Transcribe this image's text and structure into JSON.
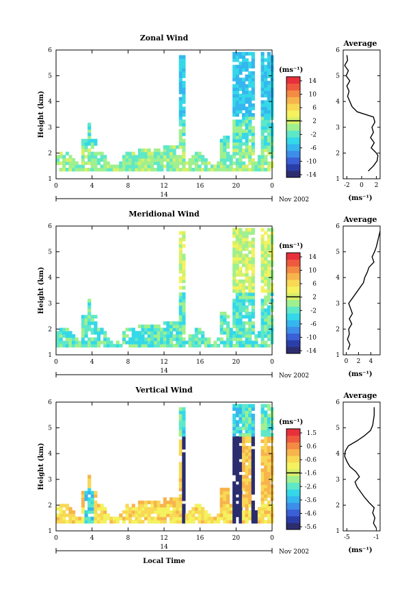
{
  "figure": {
    "xlabel": "Local Time",
    "time_ticks": [
      "0",
      "4",
      "8",
      "12",
      "16",
      "20",
      "0"
    ],
    "day_label": "14",
    "month_label": "Nov 2002",
    "unit_label": "(ms⁻¹)",
    "height_ticks": [
      "1",
      "2",
      "3",
      "4",
      "5",
      "6"
    ],
    "colors": [
      "#2b2d6e",
      "#2b3ea8",
      "#3a5fd6",
      "#3d8ee8",
      "#35b6ee",
      "#34d8e8",
      "#5fe8c8",
      "#9ff08e",
      "#d6f06a",
      "#f4f25e",
      "#f8d855",
      "#f7b44c",
      "#f48a44",
      "#ef5a3e",
      "#e8303a"
    ]
  },
  "panels": [
    {
      "id": "zonal",
      "title": "Zonal Wind",
      "ylabel": "Height (km)",
      "colorbar_ticks": [
        "14",
        "10",
        "6",
        "2",
        "-2",
        "-6",
        "-10",
        "-14"
      ],
      "avg_title": "Average",
      "avg_xticks": [
        "-2",
        "0",
        "2"
      ],
      "avg_unit": "(ms⁻¹)"
    },
    {
      "id": "meridional",
      "title": "Meridional Wind",
      "ylabel": "Height (km)",
      "colorbar_ticks": [
        "14",
        "10",
        "6",
        "2",
        "-2",
        "-6",
        "-10",
        "-14"
      ],
      "avg_title": "Average",
      "avg_xticks": [
        "0",
        "2",
        "4"
      ],
      "avg_unit": "(ms⁻¹)"
    },
    {
      "id": "vertical",
      "title": "Vertical Wind",
      "ylabel": "Height (km)",
      "colorbar_ticks": [
        "1.5",
        "0.6",
        "-0.6",
        "-1.6",
        "-2.6",
        "-3.6",
        "-4.6",
        "-5.6"
      ],
      "avg_title": "Average",
      "avg_xticks": [
        "-5",
        "-1"
      ],
      "avg_unit": "(ms⁻¹)"
    }
  ],
  "chart_data": [
    {
      "type": "heatmap",
      "title": "Zonal Wind",
      "xlabel": "",
      "ylabel": "Height (km)",
      "x_range": [
        0,
        24
      ],
      "ylim": [
        1,
        6
      ],
      "colorbar": {
        "label": "(ms⁻¹)",
        "range": [
          -15,
          15
        ]
      },
      "profile": {
        "title": "Average",
        "xlim": [
          -2.5,
          2.5
        ],
        "heights": [
          1.3,
          1.5,
          1.7,
          1.9,
          2.0,
          2.2,
          2.4,
          2.6,
          2.8,
          3.0,
          3.2,
          3.4,
          3.6,
          3.8,
          4.0,
          4.2,
          4.4,
          4.6,
          4.8,
          5.0,
          5.2,
          5.4,
          5.6,
          5.8
        ],
        "values": [
          0.9,
          1.6,
          2.1,
          2.2,
          2.0,
          1.3,
          1.7,
          1.2,
          1.6,
          1.4,
          1.8,
          1.6,
          -0.6,
          -1.3,
          -1.6,
          -1.9,
          -1.7,
          -2.0,
          -1.6,
          -2.1,
          -1.8,
          -2.3,
          -1.9,
          -2.0
        ]
      }
    },
    {
      "type": "heatmap",
      "title": "Meridional Wind",
      "xlabel": "",
      "ylabel": "Height (km)",
      "x_range": [
        0,
        24
      ],
      "ylim": [
        1,
        6
      ],
      "colorbar": {
        "label": "(ms⁻¹)",
        "range": [
          -15,
          15
        ]
      },
      "profile": {
        "title": "Average",
        "xlim": [
          -0.5,
          5.5
        ],
        "heights": [
          1.2,
          1.4,
          1.6,
          1.8,
          2.0,
          2.2,
          2.4,
          2.6,
          2.8,
          3.0,
          3.2,
          3.4,
          3.6,
          3.8,
          4.0,
          4.2,
          4.4,
          4.6,
          4.8,
          5.0,
          5.2,
          5.4,
          5.6,
          5.8
        ],
        "values": [
          0.3,
          0.6,
          0.2,
          0.5,
          0.4,
          0.9,
          0.5,
          1.0,
          0.7,
          0.4,
          1.0,
          1.6,
          2.2,
          2.8,
          3.0,
          3.4,
          3.7,
          4.5,
          4.2,
          4.6,
          4.9,
          5.1,
          5.3,
          5.5
        ]
      }
    },
    {
      "type": "heatmap",
      "title": "Vertical Wind",
      "xlabel": "Local Time",
      "ylabel": "Height (km)",
      "x_range": [
        0,
        24
      ],
      "ylim": [
        1,
        6
      ],
      "colorbar": {
        "label": "(ms⁻¹)",
        "range": [
          -6.0,
          2.0
        ]
      },
      "profile": {
        "title": "Average",
        "xlim": [
          -5.5,
          -0.5
        ],
        "heights": [
          1.1,
          1.3,
          1.5,
          1.7,
          1.9,
          2.1,
          2.3,
          2.5,
          2.7,
          2.9,
          3.1,
          3.3,
          3.5,
          3.7,
          3.9,
          4.1,
          4.3,
          4.5,
          4.7,
          4.9,
          5.1,
          5.3,
          5.5,
          5.8
        ],
        "values": [
          -1.0,
          -1.4,
          -1.2,
          -1.5,
          -1.3,
          -2.0,
          -2.6,
          -3.1,
          -3.6,
          -3.9,
          -3.3,
          -3.8,
          -4.6,
          -5.0,
          -5.3,
          -5.2,
          -4.8,
          -3.6,
          -2.6,
          -1.8,
          -1.5,
          -1.4,
          -1.3,
          -1.3
        ]
      }
    }
  ]
}
